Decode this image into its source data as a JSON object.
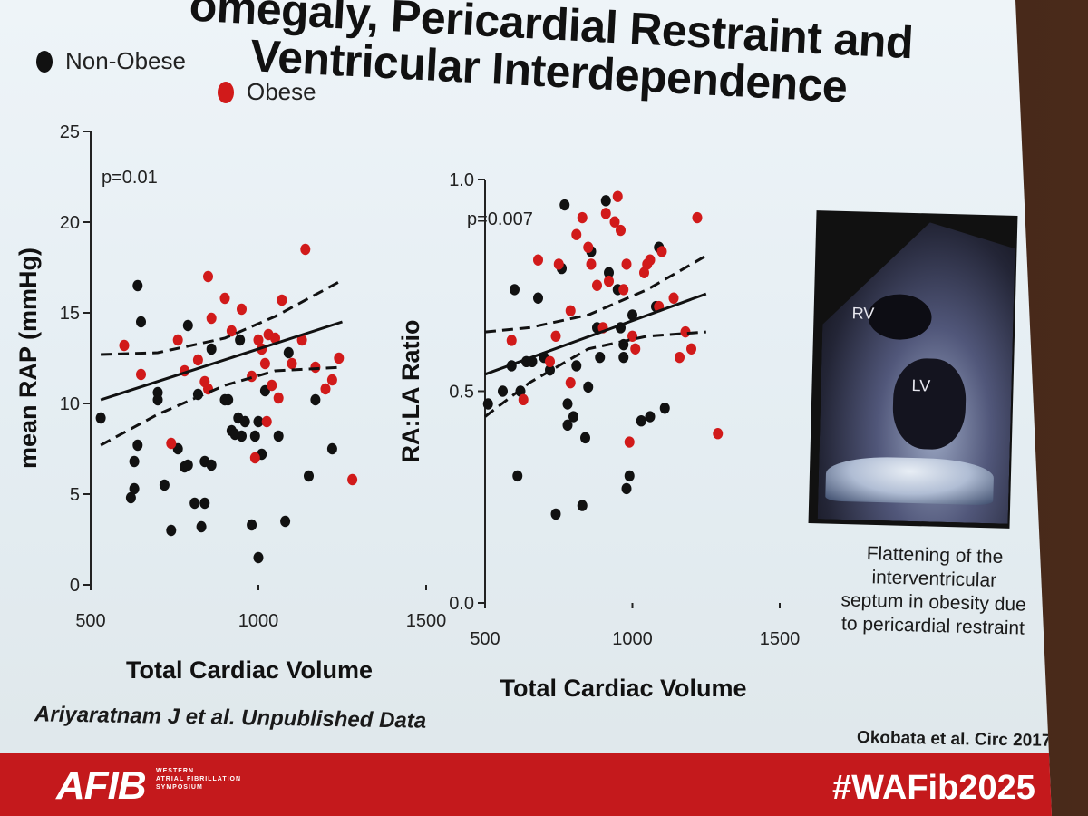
{
  "slide": {
    "title_lines": [
      "omegaly, Pericardial Restraint and",
      "Ventricular Interdependence"
    ],
    "legend": [
      {
        "label": "Non-Obese",
        "color": "#111111"
      },
      {
        "label": "Obese",
        "color": "#d11a1a"
      }
    ],
    "image_labels": {
      "rv": "RV",
      "lv": "LV"
    },
    "caption": "Flattening of the interventricular septum in obesity due to pericardial restraint",
    "cite_left": "Ariyaratnam J et al. Unpublished Data",
    "cite_right": "Okobata et al. Circ 2017",
    "footer": {
      "logo": "AFIB",
      "logo_sub": [
        "WESTERN",
        "ATRIAL FIBRILLATION",
        "SYMPOSIUM"
      ],
      "hashtag": "#WAFib2025"
    },
    "colors": {
      "non_obese": "#111111",
      "obese": "#d11a1a",
      "footer": "#c4191c"
    }
  },
  "chart_data": [
    {
      "type": "scatter",
      "title": "",
      "xlabel": "Total Cardiac Volume",
      "ylabel": "mean RAP (mmHg)",
      "xlim": [
        500,
        1500
      ],
      "ylim": [
        0,
        25
      ],
      "xticks": [
        500,
        1000,
        1500
      ],
      "yticks": [
        0,
        5,
        10,
        15,
        20,
        25
      ],
      "annotation": "p=0.01",
      "series": [
        {
          "name": "Non-Obese",
          "color": "#111111",
          "points": [
            [
              530,
              9.2
            ],
            [
              620,
              4.8
            ],
            [
              630,
              5.3
            ],
            [
              630,
              6.8
            ],
            [
              640,
              16.5
            ],
            [
              640,
              7.7
            ],
            [
              650,
              14.5
            ],
            [
              700,
              10.6
            ],
            [
              720,
              5.5
            ],
            [
              740,
              3.0
            ],
            [
              760,
              7.5
            ],
            [
              780,
              6.5
            ],
            [
              790,
              6.6
            ],
            [
              810,
              4.5
            ],
            [
              820,
              10.5
            ],
            [
              830,
              3.2
            ],
            [
              840,
              4.5
            ],
            [
              840,
              6.8
            ],
            [
              860,
              6.6
            ],
            [
              900,
              10.2
            ],
            [
              910,
              10.2
            ],
            [
              920,
              8.5
            ],
            [
              930,
              8.3
            ],
            [
              940,
              9.2
            ],
            [
              945,
              13.5
            ],
            [
              950,
              8.2
            ],
            [
              960,
              9.0
            ],
            [
              980,
              3.3
            ],
            [
              990,
              8.2
            ],
            [
              1000,
              1.5
            ],
            [
              1000,
              9.0
            ],
            [
              1010,
              7.2
            ],
            [
              1020,
              10.7
            ],
            [
              1060,
              8.2
            ],
            [
              1080,
              3.5
            ],
            [
              1090,
              12.8
            ],
            [
              1150,
              6.0
            ],
            [
              1170,
              10.2
            ],
            [
              1220,
              7.5
            ],
            [
              860,
              13.0
            ],
            [
              700,
              10.2
            ],
            [
              790,
              14.3
            ]
          ]
        },
        {
          "name": "Obese",
          "color": "#d11a1a",
          "points": [
            [
              600,
              13.2
            ],
            [
              650,
              11.6
            ],
            [
              740,
              7.8
            ],
            [
              760,
              13.5
            ],
            [
              780,
              11.8
            ],
            [
              820,
              12.4
            ],
            [
              840,
              11.2
            ],
            [
              850,
              10.8
            ],
            [
              850,
              17.0
            ],
            [
              860,
              14.7
            ],
            [
              900,
              15.8
            ],
            [
              920,
              14.0
            ],
            [
              950,
              15.2
            ],
            [
              980,
              11.5
            ],
            [
              990,
              7.0
            ],
            [
              1000,
              13.5
            ],
            [
              1010,
              13.0
            ],
            [
              1020,
              12.2
            ],
            [
              1025,
              9.0
            ],
            [
              1030,
              13.8
            ],
            [
              1040,
              11.0
            ],
            [
              1050,
              13.6
            ],
            [
              1060,
              10.3
            ],
            [
              1070,
              15.7
            ],
            [
              1100,
              12.2
            ],
            [
              1130,
              13.5
            ],
            [
              1140,
              18.5
            ],
            [
              1170,
              12.0
            ],
            [
              1200,
              10.8
            ],
            [
              1220,
              11.3
            ],
            [
              1240,
              12.5
            ],
            [
              1280,
              5.8
            ]
          ]
        }
      ],
      "regression": {
        "x": [
          530,
          1250
        ],
        "y": [
          10.2,
          14.5
        ]
      },
      "ci_upper": {
        "x": [
          530,
          700,
          900,
          1050,
          1250
        ],
        "y": [
          12.7,
          12.8,
          13.6,
          14.8,
          16.8
        ]
      },
      "ci_lower": {
        "x": [
          530,
          700,
          900,
          1050,
          1250
        ],
        "y": [
          7.7,
          9.4,
          11.0,
          11.8,
          12.0
        ]
      }
    },
    {
      "type": "scatter",
      "title": "",
      "xlabel": "Total Cardiac Volume",
      "ylabel": "RA:LA Ratio",
      "xlim": [
        500,
        1500
      ],
      "ylim": [
        0.0,
        1.0
      ],
      "xticks": [
        500,
        1000,
        1500
      ],
      "yticks": [
        0.0,
        0.5,
        1.0
      ],
      "ytick_labels": [
        "0.0",
        "0.5",
        "1.0"
      ],
      "annotation": "p=0.007",
      "series": [
        {
          "name": "Non-Obese",
          "color": "#111111",
          "points": [
            [
              510,
              0.47
            ],
            [
              560,
              0.5
            ],
            [
              590,
              0.56
            ],
            [
              600,
              0.74
            ],
            [
              610,
              0.3
            ],
            [
              620,
              0.5
            ],
            [
              640,
              0.57
            ],
            [
              660,
              0.57
            ],
            [
              680,
              0.72
            ],
            [
              700,
              0.58
            ],
            [
              720,
              0.55
            ],
            [
              740,
              0.21
            ],
            [
              760,
              0.79
            ],
            [
              770,
              0.94
            ],
            [
              780,
              0.47
            ],
            [
              780,
              0.42
            ],
            [
              800,
              0.44
            ],
            [
              810,
              0.56
            ],
            [
              830,
              0.23
            ],
            [
              840,
              0.39
            ],
            [
              850,
              0.51
            ],
            [
              860,
              0.83
            ],
            [
              880,
              0.65
            ],
            [
              890,
              0.58
            ],
            [
              910,
              0.95
            ],
            [
              920,
              0.78
            ],
            [
              950,
              0.74
            ],
            [
              960,
              0.65
            ],
            [
              970,
              0.61
            ],
            [
              970,
              0.58
            ],
            [
              980,
              0.27
            ],
            [
              990,
              0.3
            ],
            [
              1000,
              0.68
            ],
            [
              1030,
              0.43
            ],
            [
              1060,
              0.44
            ],
            [
              1080,
              0.7
            ],
            [
              1110,
              0.46
            ],
            [
              1090,
              0.84
            ]
          ]
        },
        {
          "name": "Obese",
          "color": "#d11a1a",
          "points": [
            [
              590,
              0.62
            ],
            [
              630,
              0.48
            ],
            [
              680,
              0.81
            ],
            [
              720,
              0.57
            ],
            [
              740,
              0.63
            ],
            [
              750,
              0.8
            ],
            [
              790,
              0.52
            ],
            [
              790,
              0.69
            ],
            [
              810,
              0.87
            ],
            [
              830,
              0.91
            ],
            [
              850,
              0.84
            ],
            [
              860,
              0.8
            ],
            [
              880,
              0.75
            ],
            [
              900,
              0.65
            ],
            [
              910,
              0.92
            ],
            [
              920,
              0.76
            ],
            [
              940,
              0.9
            ],
            [
              950,
              0.96
            ],
            [
              960,
              0.88
            ],
            [
              970,
              0.74
            ],
            [
              980,
              0.8
            ],
            [
              990,
              0.38
            ],
            [
              1000,
              0.63
            ],
            [
              1010,
              0.6
            ],
            [
              1040,
              0.78
            ],
            [
              1050,
              0.8
            ],
            [
              1060,
              0.81
            ],
            [
              1090,
              0.7
            ],
            [
              1100,
              0.83
            ],
            [
              1140,
              0.72
            ],
            [
              1160,
              0.58
            ],
            [
              1180,
              0.64
            ],
            [
              1200,
              0.6
            ],
            [
              1220,
              0.91
            ],
            [
              1290,
              0.4
            ]
          ]
        }
      ],
      "regression": {
        "x": [
          500,
          1250
        ],
        "y": [
          0.54,
          0.73
        ]
      },
      "ci_upper": {
        "x": [
          500,
          650,
          850,
          1050,
          1250
        ],
        "y": [
          0.64,
          0.65,
          0.68,
          0.74,
          0.82
        ]
      },
      "ci_lower": {
        "x": [
          500,
          650,
          850,
          1050,
          1250
        ],
        "y": [
          0.44,
          0.52,
          0.6,
          0.63,
          0.64
        ]
      }
    }
  ]
}
